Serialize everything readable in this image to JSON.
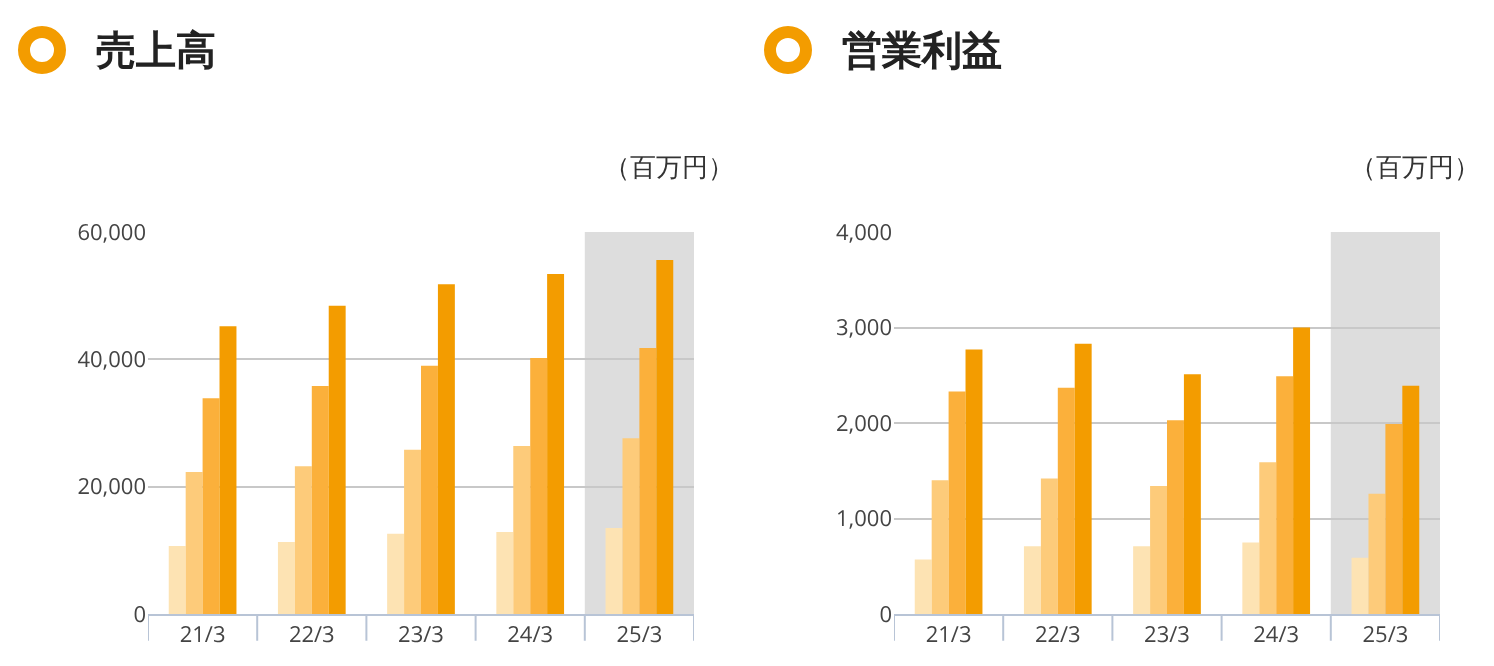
{
  "chart_data": [
    {
      "type": "bar",
      "title": "売上高",
      "annotations": [
        "（百万円）"
      ],
      "categories": [
        "21/3",
        "22/3",
        "23/3",
        "24/3",
        "25/3"
      ],
      "series": [
        {
          "color": "#fde3b3",
          "values": [
            10700,
            11300,
            12600,
            12900,
            13500
          ]
        },
        {
          "color": "#fdcb7a",
          "values": [
            22300,
            23200,
            25800,
            26400,
            27600
          ]
        },
        {
          "color": "#fbb03b",
          "values": [
            33900,
            35800,
            39000,
            40200,
            41800
          ]
        },
        {
          "color": "#f39c00",
          "values": [
            45200,
            48400,
            51800,
            53400,
            55600
          ]
        }
      ],
      "ylim": [
        0,
        60000
      ],
      "yticks": [
        {
          "value": 0,
          "label": "0"
        },
        {
          "value": 20000,
          "label": "20,000"
        },
        {
          "value": 40000,
          "label": "40,000"
        },
        {
          "value": 60000,
          "label": "60,000"
        }
      ],
      "grid": "y",
      "legend": false,
      "bands": [
        {
          "axis": "x",
          "from": "25/3",
          "to": "25/3",
          "color": "#dddddd"
        }
      ]
    },
    {
      "type": "bar",
      "title": "営業利益",
      "annotations": [
        "（百万円）"
      ],
      "categories": [
        "21/3",
        "22/3",
        "23/3",
        "24/3",
        "25/3"
      ],
      "series": [
        {
          "color": "#fde3b3",
          "values": [
            570,
            710,
            710,
            750,
            590
          ]
        },
        {
          "color": "#fdcb7a",
          "values": [
            1400,
            1420,
            1340,
            1590,
            1260
          ]
        },
        {
          "color": "#fbb03b",
          "values": [
            2330,
            2370,
            2030,
            2490,
            1990
          ]
        },
        {
          "color": "#f39c00",
          "values": [
            2770,
            2830,
            2510,
            3000,
            2390
          ]
        }
      ],
      "ylim": [
        0,
        4000
      ],
      "yticks": [
        {
          "value": 0,
          "label": "0"
        },
        {
          "value": 1000,
          "label": "1,000"
        },
        {
          "value": 2000,
          "label": "2,000"
        },
        {
          "value": 3000,
          "label": "3,000"
        },
        {
          "value": 4000,
          "label": "4,000"
        }
      ],
      "grid": "y",
      "legend": false,
      "bands": [
        {
          "axis": "x",
          "from": "25/3",
          "to": "25/3",
          "color": "#dddddd"
        }
      ]
    }
  ]
}
